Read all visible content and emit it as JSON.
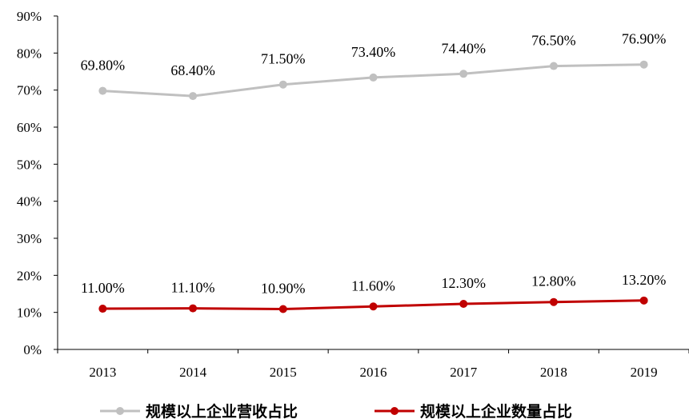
{
  "chart_data": {
    "type": "line",
    "categories": [
      "2013",
      "2014",
      "2015",
      "2016",
      "2017",
      "2018",
      "2019"
    ],
    "ylim": [
      0,
      90
    ],
    "yticks": [
      "0%",
      "10%",
      "20%",
      "30%",
      "40%",
      "50%",
      "60%",
      "70%",
      "80%",
      "90%"
    ],
    "grid": false,
    "legend_position": "bottom",
    "series": [
      {
        "name": "规模以上企业营收占比",
        "color": "#c0c0c0",
        "values": [
          69.8,
          68.4,
          71.5,
          73.4,
          74.4,
          76.5,
          76.9
        ],
        "labels": [
          "69.80%",
          "68.40%",
          "71.50%",
          "73.40%",
          "74.40%",
          "76.50%",
          "76.90%"
        ]
      },
      {
        "name": "规模以上企业数量占比",
        "color": "#c00000",
        "values": [
          11.0,
          11.1,
          10.9,
          11.6,
          12.3,
          12.8,
          13.2
        ],
        "labels": [
          "11.00%",
          "11.10%",
          "10.90%",
          "11.60%",
          "12.30%",
          "12.80%",
          "13.20%"
        ]
      }
    ]
  }
}
